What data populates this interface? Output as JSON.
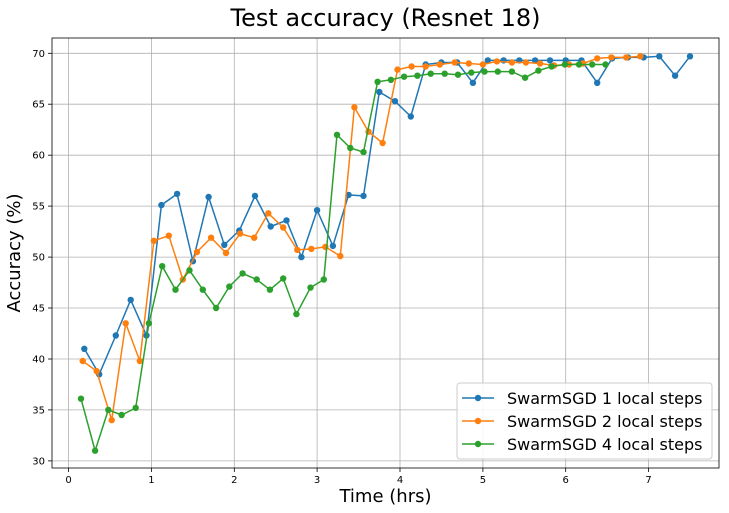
{
  "chart_data": {
    "type": "line",
    "title": "Test accuracy (Resnet 18)",
    "xlabel": "Time (hrs)",
    "ylabel": "Accuracy (%)",
    "xlim": [
      -0.2,
      7.85
    ],
    "ylim": [
      29.3,
      71.5
    ],
    "xticks": [
      0,
      1,
      2,
      3,
      4,
      5,
      6,
      7
    ],
    "yticks": [
      30,
      35,
      40,
      45,
      50,
      55,
      60,
      65,
      70
    ],
    "grid": true,
    "legend_position": "lower-right",
    "series": [
      {
        "name": "SwarmSGD 1 local steps",
        "color": "#1f77b4",
        "x": [
          0.19,
          0.37,
          0.57,
          0.75,
          0.94,
          1.12,
          1.31,
          1.5,
          1.69,
          1.88,
          2.06,
          2.25,
          2.44,
          2.63,
          2.81,
          3.0,
          3.19,
          3.38,
          3.56,
          3.75,
          3.94,
          4.13,
          4.31,
          4.5,
          4.69,
          4.88,
          5.06,
          5.25,
          5.44,
          5.63,
          5.81,
          6.0,
          6.19,
          6.38,
          6.56,
          6.75,
          6.94,
          7.13,
          7.32,
          7.5
        ],
        "y": [
          41.0,
          38.5,
          42.3,
          45.8,
          42.3,
          55.1,
          56.2,
          49.6,
          55.9,
          51.2,
          52.6,
          56.0,
          53.0,
          53.6,
          50.0,
          54.6,
          51.1,
          56.1,
          56.0,
          66.2,
          65.3,
          63.8,
          68.9,
          69.1,
          69.1,
          67.1,
          69.3,
          69.3,
          69.3,
          69.3,
          69.3,
          69.3,
          69.3,
          67.1,
          69.5,
          69.6,
          69.6,
          69.7,
          67.8,
          69.7
        ]
      },
      {
        "name": "SwarmSGD 2 local steps",
        "color": "#ff7f0e",
        "x": [
          0.17,
          0.34,
          0.52,
          0.69,
          0.86,
          1.03,
          1.21,
          1.38,
          1.55,
          1.72,
          1.9,
          2.07,
          2.24,
          2.41,
          2.59,
          2.76,
          2.93,
          3.1,
          3.28,
          3.45,
          3.62,
          3.79,
          3.97,
          4.14,
          4.31,
          4.48,
          4.66,
          4.83,
          5.0,
          5.17,
          5.35,
          5.52,
          5.69,
          5.86,
          6.04,
          6.21,
          6.38,
          6.55,
          6.73,
          6.9
        ],
        "y": [
          39.8,
          38.8,
          34.0,
          43.5,
          39.8,
          51.6,
          52.1,
          47.8,
          50.5,
          51.9,
          50.4,
          52.3,
          51.9,
          54.3,
          52.9,
          50.7,
          50.8,
          51.0,
          50.1,
          64.7,
          62.3,
          61.2,
          68.4,
          68.7,
          68.7,
          68.9,
          69.1,
          69.0,
          68.9,
          69.2,
          69.1,
          69.1,
          69.0,
          68.8,
          68.9,
          69.0,
          69.5,
          69.6,
          69.6,
          69.7
        ]
      },
      {
        "name": "SwarmSGD 4 local steps",
        "color": "#2ca02c",
        "x": [
          0.15,
          0.32,
          0.48,
          0.64,
          0.81,
          0.97,
          1.13,
          1.29,
          1.46,
          1.62,
          1.78,
          1.94,
          2.1,
          2.27,
          2.43,
          2.59,
          2.75,
          2.92,
          3.08,
          3.24,
          3.4,
          3.56,
          3.73,
          3.89,
          4.05,
          4.21,
          4.37,
          4.54,
          4.7,
          4.86,
          5.02,
          5.18,
          5.35,
          5.51,
          5.67,
          5.83,
          5.99,
          6.16,
          6.32,
          6.48
        ],
        "y": [
          36.1,
          31.0,
          35.0,
          34.5,
          35.2,
          43.5,
          49.1,
          46.8,
          48.7,
          46.8,
          45.0,
          47.1,
          48.4,
          47.8,
          46.8,
          47.9,
          44.4,
          47.0,
          47.8,
          62.0,
          60.7,
          60.3,
          67.2,
          67.4,
          67.7,
          67.8,
          68.0,
          68.0,
          67.9,
          68.1,
          68.2,
          68.2,
          68.2,
          67.6,
          68.3,
          68.7,
          68.9,
          68.9,
          68.9,
          68.9
        ]
      }
    ]
  }
}
